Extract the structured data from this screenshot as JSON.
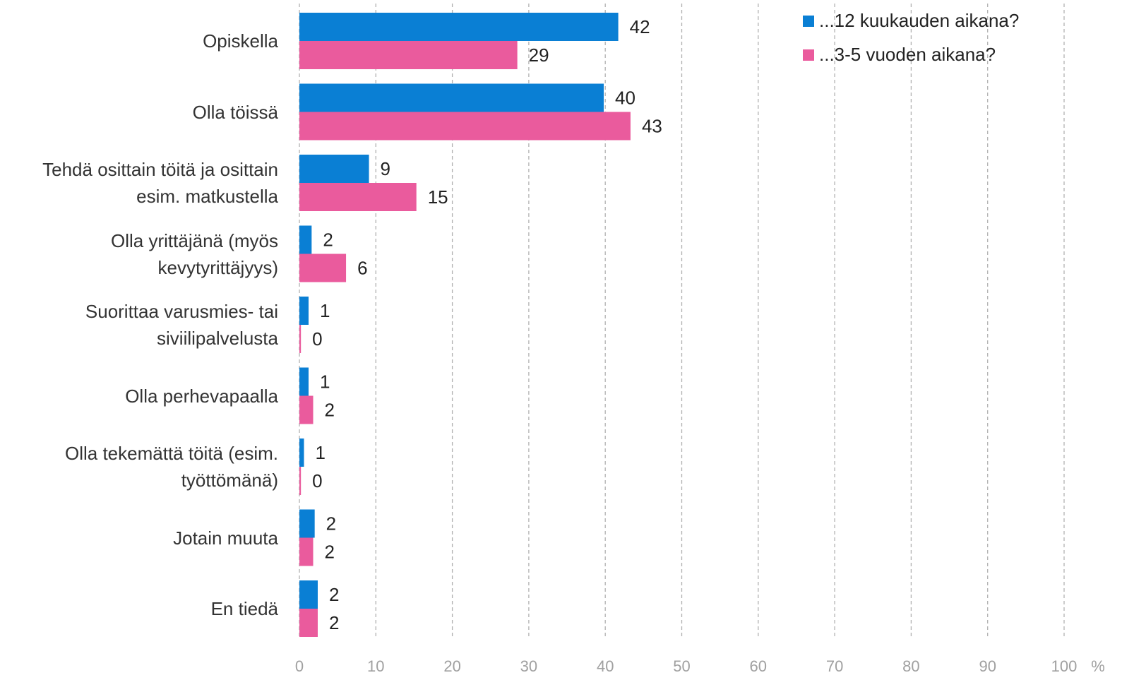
{
  "chart_data": {
    "type": "hbar",
    "categories": [
      "Opiskella",
      "Olla töissä",
      "Tehdä osittain töitä ja osittain\nesim. matkustella",
      "Olla yrittäjänä (myös\nkevytyrittäjyys)",
      "Suorittaa varusmies- tai\nsiviilipalvelusta",
      "Olla perhevapaalla",
      "Olla tekemättä töitä (esim.\ntyöttömänä)",
      "Jotain muuta",
      "En tiedä"
    ],
    "series": [
      {
        "name": "...12 kuukauden aikana?",
        "color": "#0a7fd4",
        "values": [
          41.7,
          39.8,
          9.1,
          1.6,
          1.2,
          1.2,
          0.6,
          2.0,
          2.4
        ],
        "value_labels": [
          "42",
          "40",
          "9",
          "2",
          "1",
          "1",
          "1",
          "2",
          "2"
        ]
      },
      {
        "name": "...3-5 vuoden aikana?",
        "color": "#ea5b9d",
        "values": [
          28.5,
          43.3,
          15.3,
          6.1,
          0.2,
          1.8,
          0.2,
          1.8,
          2.4
        ],
        "value_labels": [
          "29",
          "43",
          "15",
          "6",
          "0",
          "2",
          "0",
          "2",
          "2"
        ]
      }
    ],
    "xlim": [
      0,
      100
    ],
    "xticks": [
      0,
      10,
      20,
      30,
      40,
      50,
      60,
      70,
      80,
      90,
      100
    ],
    "x_unit": "%",
    "grid": true
  }
}
